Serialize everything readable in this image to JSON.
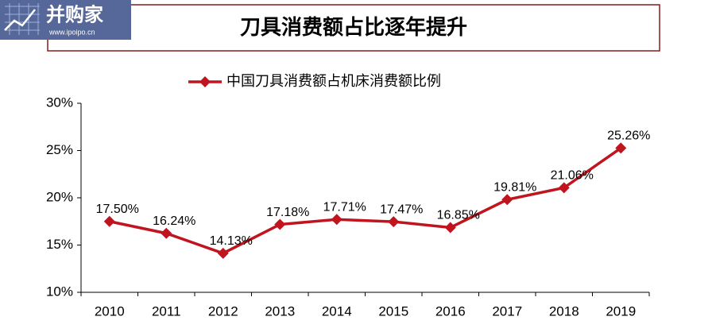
{
  "logo": {
    "name": "并购家",
    "url": "www.ipoipo.cn"
  },
  "chart_data": {
    "type": "line",
    "title": "刀具消费额占比逐年提升",
    "categories": [
      "2010",
      "2011",
      "2012",
      "2013",
      "2014",
      "2015",
      "2016",
      "2017",
      "2018",
      "2019"
    ],
    "series": [
      {
        "name": "中国刀具消费额占机床消费额比例",
        "color": "#c0141e",
        "values": [
          17.5,
          16.24,
          14.13,
          17.18,
          17.71,
          17.47,
          16.85,
          19.81,
          21.06,
          25.26
        ],
        "value_labels": [
          "17.50%",
          "16.24%",
          "14.13%",
          "17.18%",
          "17.71%",
          "17.47%",
          "16.85%",
          "19.81%",
          "21.06%",
          "25.26%"
        ]
      }
    ],
    "ylim": [
      10,
      30
    ],
    "yticks": [
      {
        "value": 10,
        "label": "10%"
      },
      {
        "value": 15,
        "label": "15%"
      },
      {
        "value": 20,
        "label": "20%"
      },
      {
        "value": 25,
        "label": "25%"
      },
      {
        "value": 30,
        "label": "30%"
      }
    ],
    "legend": "top",
    "grid": false
  }
}
